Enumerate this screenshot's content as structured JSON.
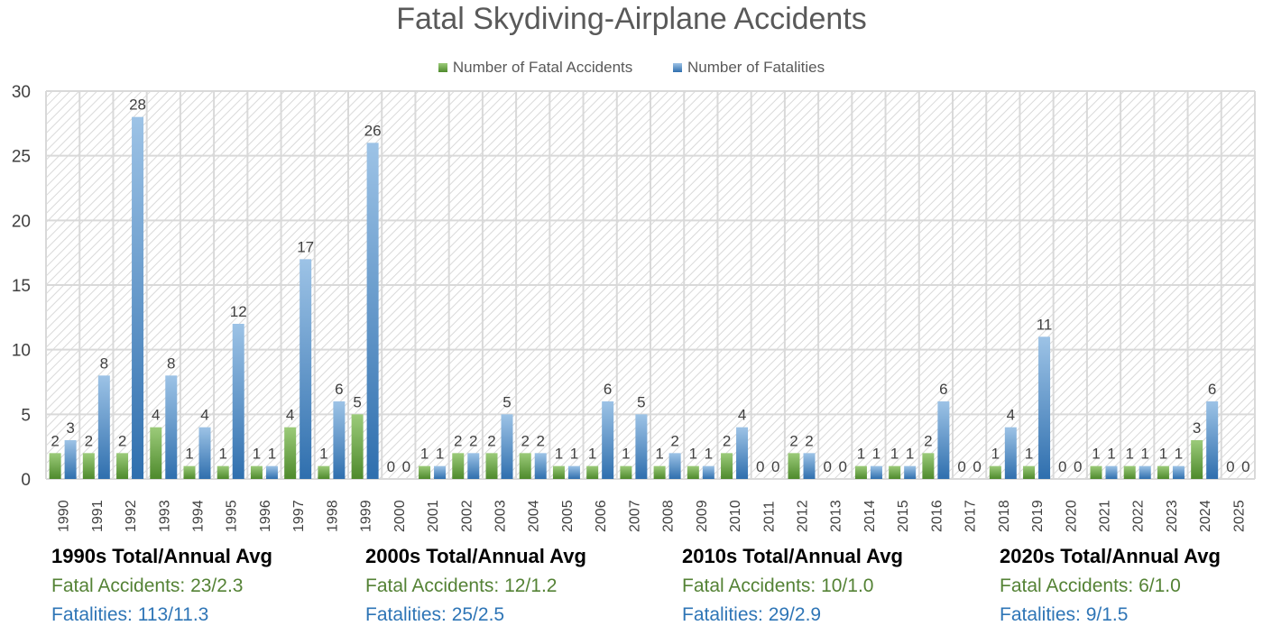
{
  "chart_data": {
    "type": "bar",
    "title": "Fatal Skydiving-Airplane Accidents",
    "xlabel": "",
    "ylabel": "",
    "ylim": [
      0,
      30
    ],
    "yticks": [
      0,
      5,
      10,
      15,
      20,
      25,
      30
    ],
    "grid": true,
    "legend_position": "top",
    "categories": [
      "1990",
      "1991",
      "1992",
      "1993",
      "1994",
      "1995",
      "1996",
      "1997",
      "1998",
      "1999",
      "2000",
      "2001",
      "2002",
      "2003",
      "2004",
      "2005",
      "2006",
      "2007",
      "2008",
      "2009",
      "2010",
      "2011",
      "2012",
      "2013",
      "2014",
      "2015",
      "2016",
      "2017",
      "2018",
      "2019",
      "2020",
      "2021",
      "2022",
      "2023",
      "2024",
      "2025"
    ],
    "series": [
      {
        "name": "Number of Fatal Accidents",
        "color": "#70ad47",
        "values": [
          2,
          2,
          2,
          4,
          1,
          1,
          1,
          4,
          1,
          5,
          0,
          1,
          2,
          2,
          2,
          1,
          1,
          1,
          1,
          1,
          2,
          0,
          2,
          0,
          1,
          1,
          2,
          0,
          1,
          1,
          0,
          1,
          1,
          1,
          3,
          0
        ]
      },
      {
        "name": "Number of Fatalities",
        "color": "#5b9bd5",
        "values": [
          3,
          8,
          28,
          8,
          4,
          12,
          1,
          17,
          6,
          26,
          0,
          1,
          2,
          5,
          2,
          1,
          6,
          5,
          2,
          1,
          4,
          0,
          2,
          0,
          1,
          1,
          6,
          0,
          4,
          11,
          0,
          1,
          1,
          1,
          6,
          0
        ]
      }
    ],
    "annotations": [
      {
        "heading": "1990s Total/Annual Avg",
        "accidents": "Fatal Accidents: 23/2.3",
        "fatalities": "Fatalities: 113/11.3"
      },
      {
        "heading": "2000s Total/Annual Avg",
        "accidents": "Fatal Accidents: 12/1.2",
        "fatalities": "Fatalities: 25/2.5"
      },
      {
        "heading": "2010s Total/Annual Avg",
        "accidents": "Fatal Accidents: 10/1.0",
        "fatalities": "Fatalities: 29/2.9"
      },
      {
        "heading": "2020s Total/Annual Avg",
        "accidents": "Fatal Accidents: 6/1.0",
        "fatalities": "Fatalities: 9/1.5"
      }
    ]
  }
}
